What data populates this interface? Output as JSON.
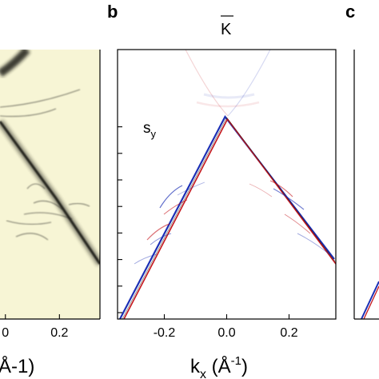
{
  "figure": {
    "colors": {
      "background_a": "#f7f5d5",
      "band_dark": "#1a1a14",
      "spin_positive": "#c4161c",
      "spin_negative": "#1b2fb5",
      "axis": "#000000"
    }
  },
  "chart_data": [
    {
      "type": "heatmap",
      "panel_label": "",
      "xlim": [
        -0.02,
        0.35
      ],
      "xtick_labels": [
        "0",
        "0.2"
      ],
      "xlabel": "(Å-1)",
      "colormap": "yellow-to-black intensity"
    },
    {
      "type": "heatmap",
      "panel_label": "b",
      "top_label": "K",
      "annotation": "sy",
      "annotation_main": "s",
      "annotation_sub": "y",
      "xlim": [
        -0.35,
        0.35
      ],
      "x_ticks": [
        -0.2,
        0.0,
        0.2
      ],
      "xtick_labels": [
        "-0.2",
        "0.0",
        "0.2"
      ],
      "xlabel_main": "k",
      "xlabel_sub": "x",
      "xlabel_unit": " (Å",
      "xlabel_exp": "-1",
      "xlabel_close": ")",
      "y_tick_count": 8,
      "colormap": "blue-white-red spin polarization"
    },
    {
      "type": "heatmap",
      "panel_label": "c"
    }
  ]
}
